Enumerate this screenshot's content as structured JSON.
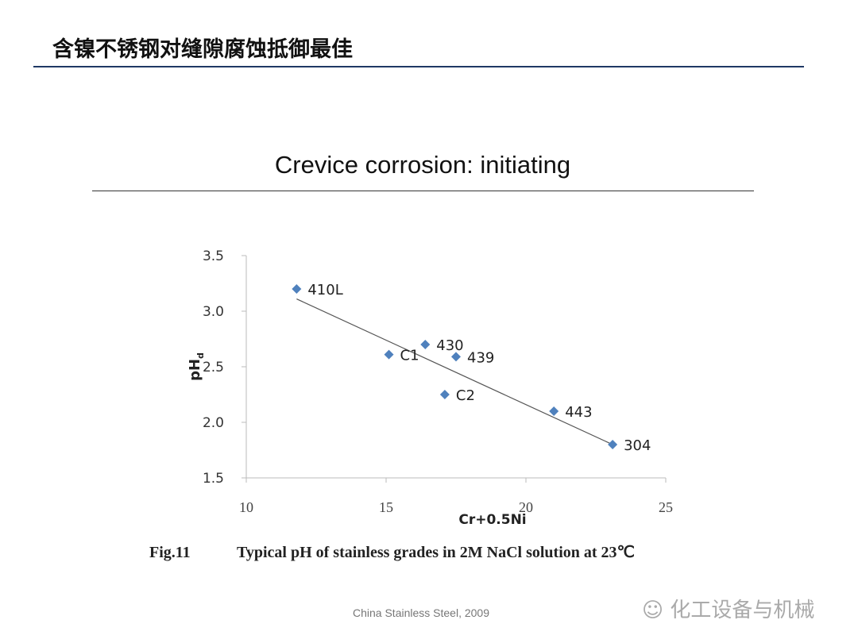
{
  "slide": {
    "title": "含镍不锈钢对缝隙腐蚀抵御最佳",
    "source": "China Stainless Steel, 2009",
    "watermark": "化工设备与机械"
  },
  "chart_data": {
    "type": "scatter",
    "title": "Crevice corrosion: initiating",
    "xlabel": "Cr+0.5Ni",
    "ylabel": "pH",
    "ylabel_sub": "d",
    "xlim": [
      10,
      25
    ],
    "ylim": [
      1.5,
      3.5
    ],
    "xticks": [
      "10",
      "15",
      "20",
      "25"
    ],
    "yticks": [
      "1.5",
      "2.0",
      "2.5",
      "3.0",
      "3.5"
    ],
    "grid": false,
    "marker_color": "#4f81bd",
    "points": [
      {
        "label": "410L",
        "x": 11.8,
        "y": 3.2
      },
      {
        "label": "C1",
        "x": 15.1,
        "y": 2.61
      },
      {
        "label": "430",
        "x": 16.4,
        "y": 2.7
      },
      {
        "label": "439",
        "x": 17.5,
        "y": 2.59
      },
      {
        "label": "C2",
        "x": 17.1,
        "y": 2.25
      },
      {
        "label": "443",
        "x": 21.0,
        "y": 2.1
      },
      {
        "label": "304",
        "x": 23.1,
        "y": 1.8
      }
    ],
    "trendline": {
      "x": [
        11.8,
        23.1
      ],
      "y": [
        3.11,
        1.8
      ]
    },
    "caption_fig": "Fig.11",
    "caption": "Typical pH of stainless grades in 2M NaCl solution at 23℃"
  }
}
